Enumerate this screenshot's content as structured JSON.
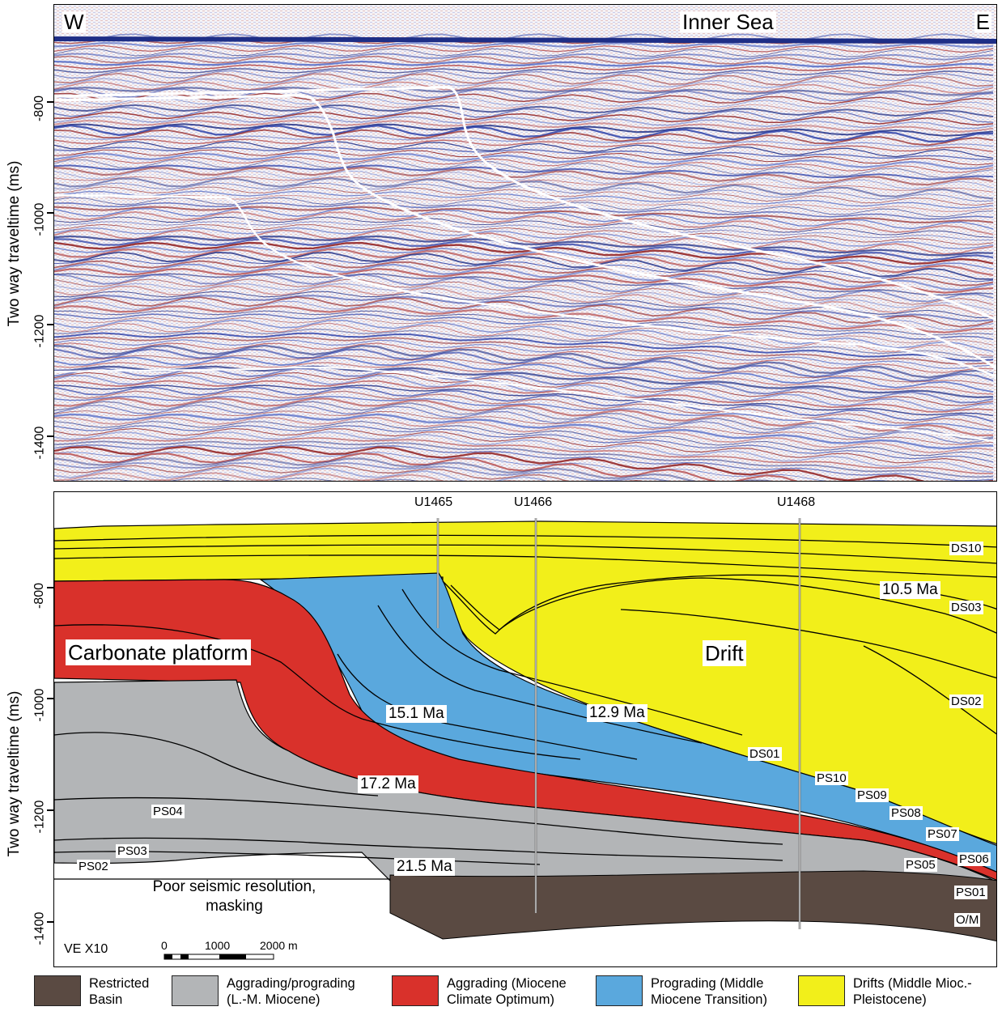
{
  "seismic_panel": {
    "west_label": "W",
    "east_label": "E",
    "title": "Inner Sea",
    "y_axis_label": "Two way traveltime (ms)",
    "y_ticks": [
      "-800",
      "-1000",
      "-1200",
      "-1400"
    ]
  },
  "interpretation_panel": {
    "y_axis_label": "Two way traveltime (ms)",
    "y_ticks": [
      "-800",
      "-1000",
      "-1200",
      "-1400"
    ],
    "wells": [
      "U1465",
      "U1466",
      "U1468"
    ],
    "unit_labels": {
      "carbonate_platform": "Carbonate platform",
      "drift": "Drift",
      "poor_resolution": "Poor seismic resolution,\nmasking"
    },
    "age_labels": [
      "10.5 Ma",
      "15.1 Ma",
      "12.9 Ma",
      "17.2 Ma",
      "21.5 Ma"
    ],
    "sequence_labels": {
      "DS10": "DS10",
      "DS03": "DS03",
      "DS02": "DS02",
      "DS01": "DS01",
      "PS10": "PS10",
      "PS09": "PS09",
      "PS08": "PS08",
      "PS07": "PS07",
      "PS06": "PS06",
      "PS05": "PS05",
      "PS04": "PS04",
      "PS03": "PS03",
      "PS02": "PS02",
      "PS01": "PS01",
      "OM": "O/M"
    },
    "vertical_exaggeration": "VE X10",
    "scale_bar": {
      "labels": [
        "0",
        "1000",
        "2000 m"
      ]
    }
  },
  "legend": [
    {
      "label": "Restricted\nBasin",
      "color": "#5a4a42"
    },
    {
      "label": "Aggrading/prograding\n(L.-M. Miocene)",
      "color": "#b3b5b7"
    },
    {
      "label": "Aggrading (Miocene\nClimate Optimum)",
      "color": "#d9312b"
    },
    {
      "label": "Prograding (Middle\nMiocene Transition)",
      "color": "#5aa8dd"
    },
    {
      "label": "Drifts (Middle Mioc.-\nPleistocene)",
      "color": "#f2ef1a"
    }
  ]
}
